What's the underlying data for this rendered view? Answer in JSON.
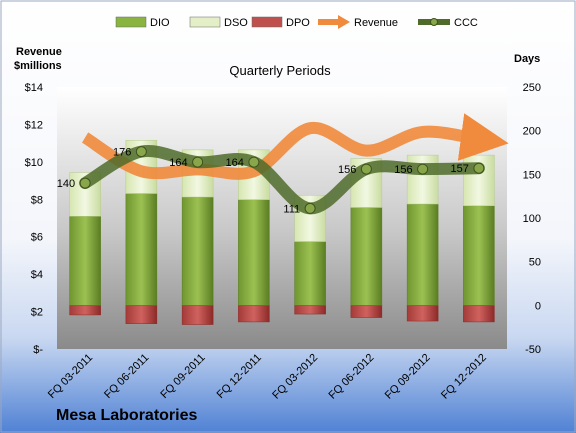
{
  "colors": {
    "background_top": "#ffffff",
    "background_bottom": "#4f81d4",
    "plot_top": "#ffffff",
    "plot_bottom": "#8a8a8a",
    "dio": "#8ab440",
    "dio_dark": "#5a7d22",
    "dso": "#e4efc8",
    "dpo": "#c0504d",
    "dpo_dark": "#8c2a28",
    "revenue": "#f08a3c",
    "ccc": "#4f6b2a"
  },
  "chart_data": {
    "type": "bar",
    "title": "Quarterly Periods",
    "footer": "Mesa Laboratories",
    "y_left_label": [
      "Revenue",
      "$millions"
    ],
    "y_right_label": "Days",
    "y_left_ticks": [
      "$-",
      "$2",
      "$4",
      "$6",
      "$8",
      "$10",
      "$12",
      "$14"
    ],
    "y_left_lim": [
      0,
      14
    ],
    "y_right_ticks": [
      "-50",
      "0",
      "50",
      "100",
      "150",
      "200",
      "250"
    ],
    "y_right_lim": [
      -50,
      250
    ],
    "grid": false,
    "legend_position": "top",
    "legend": [
      "DIO",
      "DSO",
      "DPO",
      "Revenue",
      "CCC"
    ],
    "categories": [
      "FQ 03-2011",
      "FQ 06-2011",
      "FQ 09-2011",
      "FQ 12-2011",
      "FQ 03-2012",
      "FQ 06-2012",
      "FQ 09-2012",
      "FQ 12-2012"
    ],
    "series": [
      {
        "name": "DIO",
        "axis": "right",
        "values": [
          102,
          128,
          124,
          121,
          73,
          112,
          116,
          114
        ]
      },
      {
        "name": "DSO",
        "axis": "right",
        "values": [
          50,
          61,
          54,
          57,
          53,
          56,
          56,
          58
        ]
      },
      {
        "name": "DPO",
        "axis": "right",
        "values": [
          -11,
          -21,
          -22,
          -19,
          -10,
          -14,
          -18,
          -19
        ]
      },
      {
        "name": "Revenue",
        "axis": "left",
        "values": [
          11.3,
          9.5,
          9.6,
          9.5,
          11.8,
          10.6,
          11.6,
          11.2
        ]
      },
      {
        "name": "CCC",
        "axis": "right",
        "values": [
          140,
          176,
          164,
          164,
          111,
          156,
          156,
          157
        ],
        "labels": [
          "140",
          "176",
          "164",
          "164",
          "111",
          "156",
          "156",
          "157"
        ]
      }
    ]
  }
}
